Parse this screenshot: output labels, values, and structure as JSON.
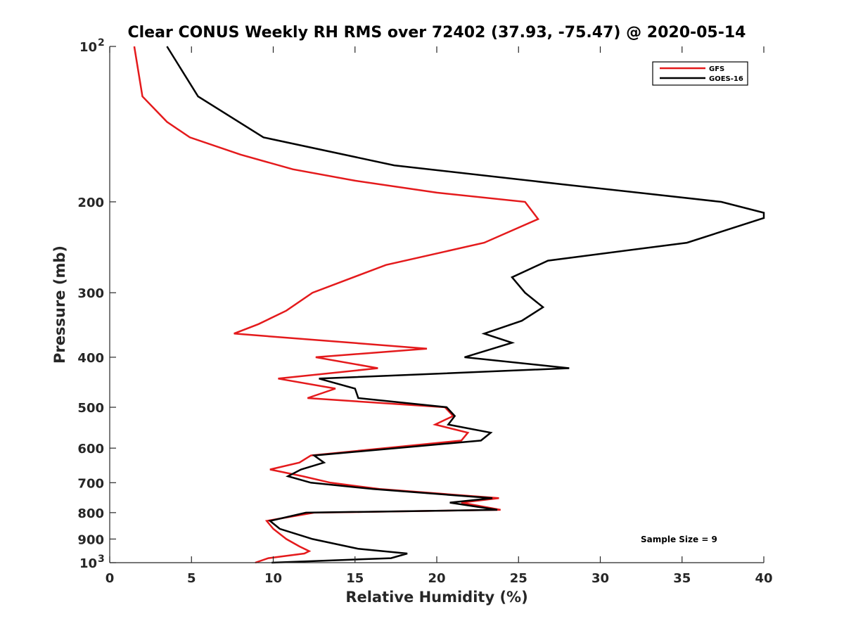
{
  "chart_data": {
    "type": "line",
    "title": "Clear CONUS Weekly RH RMS over 72402 (37.93, -75.47) @ 2020-05-14",
    "xlabel": "Relative Humidity (%)",
    "ylabel": "Pressure (mb)",
    "xlim": [
      0,
      40
    ],
    "ylim": [
      100,
      1000
    ],
    "yscale": "log",
    "yreversed": true,
    "x_ticks": [
      0,
      5,
      10,
      15,
      20,
      25,
      30,
      35,
      40
    ],
    "y_ticks": [
      {
        "value": 100,
        "label": "10",
        "sup": "2"
      },
      {
        "value": 200,
        "label": "200"
      },
      {
        "value": 300,
        "label": "300"
      },
      {
        "value": 400,
        "label": "400"
      },
      {
        "value": 500,
        "label": "500"
      },
      {
        "value": 600,
        "label": "600"
      },
      {
        "value": 700,
        "label": "700"
      },
      {
        "value": 800,
        "label": "800"
      },
      {
        "value": 900,
        "label": "900"
      },
      {
        "value": 1000,
        "label": "10",
        "sup": "3"
      }
    ],
    "legend_position": "top-right",
    "annotation": "Sample Size = 9",
    "series": [
      {
        "name": "GFS",
        "color": "#e41a1c",
        "points": [
          [
            1.5,
            100
          ],
          [
            2.0,
            125
          ],
          [
            3.5,
            140
          ],
          [
            4.9,
            150
          ],
          [
            8.0,
            162
          ],
          [
            11.2,
            173
          ],
          [
            15.0,
            182
          ],
          [
            20.0,
            192
          ],
          [
            25.4,
            200
          ],
          [
            26.2,
            216
          ],
          [
            22.9,
            240
          ],
          [
            16.9,
            265
          ],
          [
            12.4,
            300
          ],
          [
            10.8,
            325
          ],
          [
            9.1,
            345
          ],
          [
            7.6,
            360
          ],
          [
            19.4,
            385
          ],
          [
            12.6,
            400
          ],
          [
            16.4,
            420
          ],
          [
            10.3,
            440
          ],
          [
            13.8,
            460
          ],
          [
            12.1,
            480
          ],
          [
            20.5,
            500
          ],
          [
            21.0,
            520
          ],
          [
            19.9,
            540
          ],
          [
            21.9,
            560
          ],
          [
            21.5,
            580
          ],
          [
            12.3,
            620
          ],
          [
            11.6,
            640
          ],
          [
            9.8,
            660
          ],
          [
            11.8,
            680
          ],
          [
            13.5,
            700
          ],
          [
            16.5,
            720
          ],
          [
            23.8,
            750
          ],
          [
            21.5,
            765
          ],
          [
            23.9,
            790
          ],
          [
            12.5,
            800
          ],
          [
            9.6,
            830
          ],
          [
            10.0,
            860
          ],
          [
            10.8,
            900
          ],
          [
            11.6,
            930
          ],
          [
            12.2,
            950
          ],
          [
            11.9,
            960
          ],
          [
            9.7,
            980
          ],
          [
            8.9,
            1000
          ]
        ]
      },
      {
        "name": "GOES-16",
        "color": "#000000",
        "points": [
          [
            3.5,
            100
          ],
          [
            5.4,
            125
          ],
          [
            9.4,
            150
          ],
          [
            17.4,
            170
          ],
          [
            27.7,
            185
          ],
          [
            37.4,
            200
          ],
          [
            40.0,
            210
          ],
          [
            40.0,
            215
          ],
          [
            35.3,
            240
          ],
          [
            26.8,
            260
          ],
          [
            24.6,
            280
          ],
          [
            25.4,
            300
          ],
          [
            26.5,
            320
          ],
          [
            25.2,
            340
          ],
          [
            22.9,
            360
          ],
          [
            24.6,
            375
          ],
          [
            21.7,
            400
          ],
          [
            28.1,
            420
          ],
          [
            12.8,
            440
          ],
          [
            15.0,
            460
          ],
          [
            15.2,
            480
          ],
          [
            20.6,
            500
          ],
          [
            21.1,
            520
          ],
          [
            20.7,
            540
          ],
          [
            23.3,
            560
          ],
          [
            22.7,
            580
          ],
          [
            12.5,
            620
          ],
          [
            13.1,
            640
          ],
          [
            11.7,
            660
          ],
          [
            10.9,
            680
          ],
          [
            12.3,
            700
          ],
          [
            16.1,
            720
          ],
          [
            23.4,
            750
          ],
          [
            20.8,
            765
          ],
          [
            23.7,
            790
          ],
          [
            12.0,
            800
          ],
          [
            9.8,
            830
          ],
          [
            10.4,
            860
          ],
          [
            12.4,
            900
          ],
          [
            15.2,
            940
          ],
          [
            18.2,
            960
          ],
          [
            17.2,
            980
          ],
          [
            9.9,
            1000
          ]
        ]
      }
    ]
  }
}
